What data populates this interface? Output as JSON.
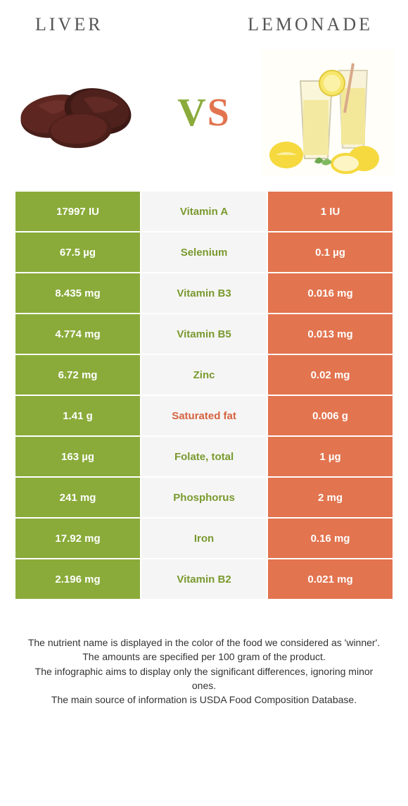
{
  "header": {
    "left_title": "LIVER",
    "right_title": "LEMONADE"
  },
  "vs": {
    "v": "V",
    "s": "S"
  },
  "colors": {
    "left_bg": "#8aab3a",
    "right_bg": "#e2744f",
    "mid_bg": "#f5f5f5",
    "left_text": "#7a9a2f",
    "right_text": "#d5623f"
  },
  "rows": [
    {
      "left": "17997 IU",
      "label": "Vitamin A",
      "right": "1 IU",
      "winner": "left"
    },
    {
      "left": "67.5 µg",
      "label": "Selenium",
      "right": "0.1 µg",
      "winner": "left"
    },
    {
      "left": "8.435 mg",
      "label": "Vitamin B3",
      "right": "0.016 mg",
      "winner": "left"
    },
    {
      "left": "4.774 mg",
      "label": "Vitamin B5",
      "right": "0.013 mg",
      "winner": "left"
    },
    {
      "left": "6.72 mg",
      "label": "Zinc",
      "right": "0.02 mg",
      "winner": "left"
    },
    {
      "left": "1.41 g",
      "label": "Saturated fat",
      "right": "0.006 g",
      "winner": "right"
    },
    {
      "left": "163 µg",
      "label": "Folate, total",
      "right": "1 µg",
      "winner": "left"
    },
    {
      "left": "241 mg",
      "label": "Phosphorus",
      "right": "2 mg",
      "winner": "left"
    },
    {
      "left": "17.92 mg",
      "label": "Iron",
      "right": "0.16 mg",
      "winner": "left"
    },
    {
      "left": "2.196 mg",
      "label": "Vitamin B2",
      "right": "0.021 mg",
      "winner": "left"
    }
  ],
  "footer": {
    "line1": "The nutrient name is displayed in the color of the food we considered as 'winner'.",
    "line2": "The amounts are specified per 100 gram of the product.",
    "line3": "The infographic aims to display only the significant differences, ignoring minor ones.",
    "line4": "The main source of information is USDA Food Composition Database."
  }
}
